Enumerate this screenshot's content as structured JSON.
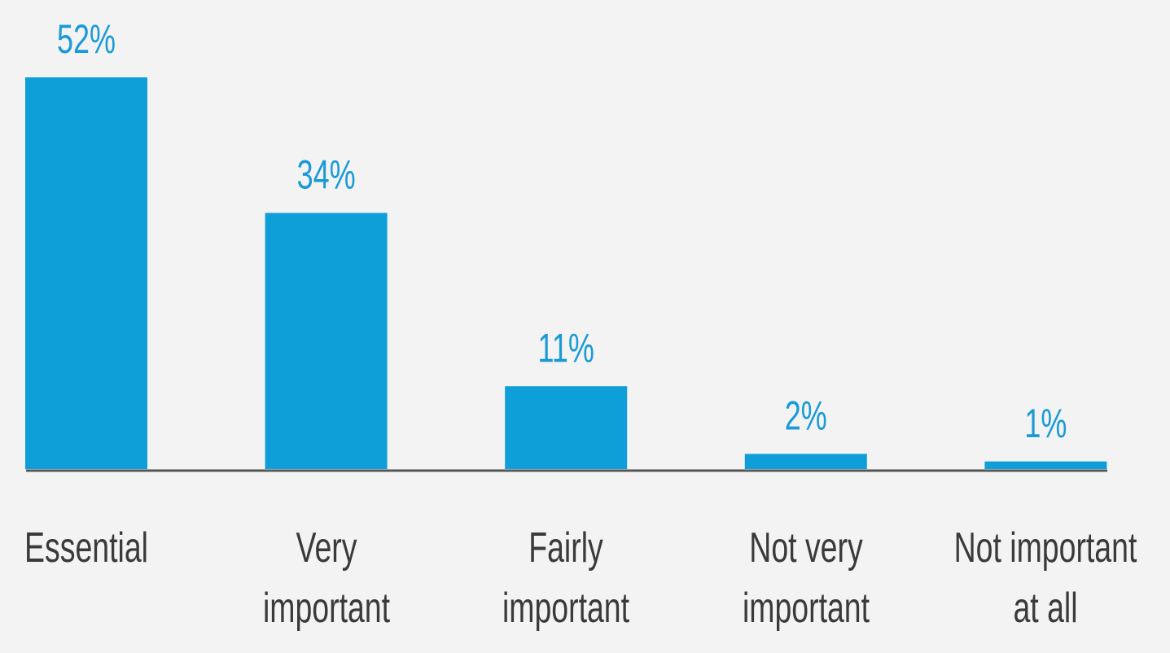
{
  "chart_data": {
    "type": "bar",
    "categories": [
      "Essential",
      "Very important",
      "Fairly important",
      "Not very important",
      "Not important at all"
    ],
    "values": [
      52,
      34,
      11,
      2,
      1
    ],
    "value_labels": [
      "52%",
      "34%",
      "11%",
      "2%",
      "1%"
    ],
    "color": "#0e9ed8"
  }
}
